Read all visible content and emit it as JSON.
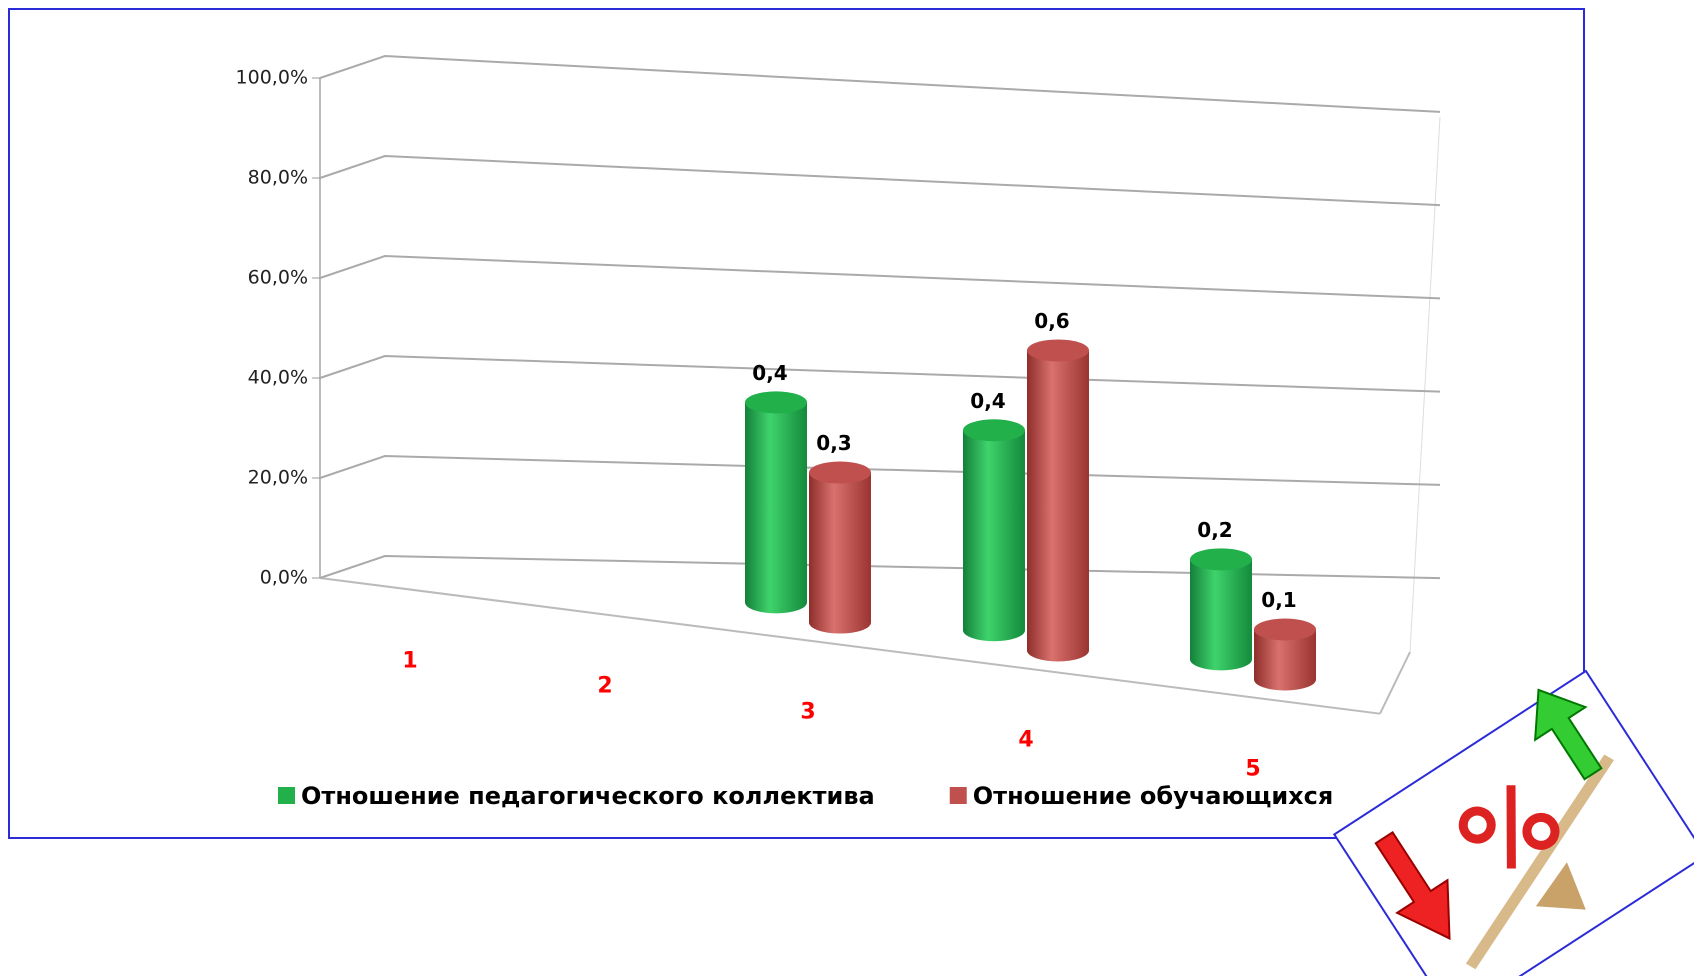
{
  "chart_data": {
    "type": "bar3d",
    "categories": [
      "1",
      "2",
      "3",
      "4",
      "5"
    ],
    "series": [
      {
        "name": "Отношение педагогического коллектива",
        "color": "#22b04b",
        "values": [
          null,
          null,
          0.4,
          0.4,
          0.2
        ],
        "value_labels": [
          null,
          null,
          "0,4",
          "0,4",
          "0,2"
        ]
      },
      {
        "name": "Отношение обучающихся",
        "color": "#c0504d",
        "values": [
          null,
          null,
          0.3,
          0.6,
          0.1
        ],
        "value_labels": [
          null,
          null,
          "0,3",
          "0,6",
          "0,1"
        ]
      }
    ],
    "ylim": [
      0,
      1
    ],
    "yticks": [
      {
        "value": 0,
        "label": "0,0%"
      },
      {
        "value": 0.2,
        "label": "20,0%"
      },
      {
        "value": 0.4,
        "label": "40,0%"
      },
      {
        "value": 0.6,
        "label": "60,0%"
      },
      {
        "value": 0.8,
        "label": "80,0%"
      },
      {
        "value": 1,
        "label": "100,0%"
      }
    ],
    "grid": true,
    "legend": "bottom"
  }
}
